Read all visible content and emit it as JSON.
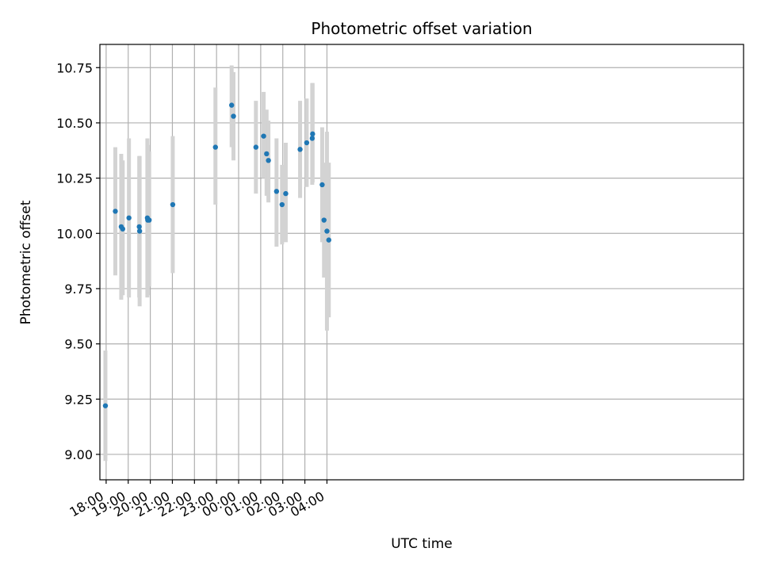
{
  "chart_data": {
    "type": "scatter",
    "title": "Photometric offset variation",
    "xlabel": "UTC time",
    "ylabel": "Photometric offset",
    "x_unit": "UTC time (HH:MM)",
    "xlim": [
      "17:43",
      "22:52 (+1 day)"
    ],
    "ylim": [
      8.885,
      10.855
    ],
    "x_ticks": [
      {
        "value": "18:00",
        "label": "18:00"
      },
      {
        "value": "19:00",
        "label": "19:00"
      },
      {
        "value": "20:00",
        "label": "20:00"
      },
      {
        "value": "21:00",
        "label": "21:00"
      },
      {
        "value": "22:00",
        "label": "22:00"
      },
      {
        "value": "23:00",
        "label": "23:00"
      },
      {
        "value": "00:00",
        "label": "00:00"
      },
      {
        "value": "01:00",
        "label": "01:00"
      },
      {
        "value": "02:00",
        "label": "02:00"
      },
      {
        "value": "03:00",
        "label": "03:00"
      },
      {
        "value": "04:00",
        "label": "04:00"
      }
    ],
    "y_ticks": [
      9.0,
      9.25,
      9.5,
      9.75,
      10.0,
      10.25,
      10.5,
      10.75
    ],
    "y_tick_labels": [
      "9.00",
      "9.25",
      "9.50",
      "9.75",
      "10.00",
      "10.25",
      "10.50",
      "10.75"
    ],
    "grid": true,
    "marker_color": "#1f77b4",
    "errorbar_color": "#d3d3d3",
    "points": [
      {
        "t": "17:58",
        "y": 9.22,
        "err_low": 8.97,
        "err_high": 9.47
      },
      {
        "t": "18:25",
        "y": 10.1,
        "err_low": 9.81,
        "err_high": 10.39
      },
      {
        "t": "18:41",
        "y": 10.03,
        "err_low": 9.7,
        "err_high": 10.36
      },
      {
        "t": "18:45",
        "y": 10.02,
        "err_low": 9.72,
        "err_high": 10.33
      },
      {
        "t": "19:02",
        "y": 10.07,
        "err_low": 9.71,
        "err_high": 10.43
      },
      {
        "t": "19:30",
        "y": 10.03,
        "err_low": 9.71,
        "err_high": 10.35
      },
      {
        "t": "19:31",
        "y": 10.01,
        "err_low": 9.67,
        "err_high": 10.35
      },
      {
        "t": "19:52",
        "y": 10.07,
        "err_low": 9.71,
        "err_high": 10.43
      },
      {
        "t": "19:53",
        "y": 10.06,
        "err_low": 9.72,
        "err_high": 10.4
      },
      {
        "t": "19:57",
        "y": 10.06,
        "err_low": 9.76,
        "err_high": 10.37
      },
      {
        "t": "21:01",
        "y": 10.13,
        "err_low": 9.82,
        "err_high": 10.44
      },
      {
        "t": "22:57",
        "y": 10.39,
        "err_low": 10.13,
        "err_high": 10.66
      },
      {
        "t": "23:41",
        "y": 10.58,
        "err_low": 10.39,
        "err_high": 10.76
      },
      {
        "t": "23:46",
        "y": 10.53,
        "err_low": 10.33,
        "err_high": 10.73
      },
      {
        "t": "00:47",
        "y": 10.39,
        "err_low": 10.18,
        "err_high": 10.6
      },
      {
        "t": "01:08",
        "y": 10.44,
        "err_low": 10.25,
        "err_high": 10.64
      },
      {
        "t": "01:16",
        "y": 10.36,
        "err_low": 10.17,
        "err_high": 10.56
      },
      {
        "t": "01:21",
        "y": 10.33,
        "err_low": 10.14,
        "err_high": 10.51
      },
      {
        "t": "01:43",
        "y": 10.19,
        "err_low": 9.94,
        "err_high": 10.43
      },
      {
        "t": "01:58",
        "y": 10.13,
        "err_low": 9.95,
        "err_high": 10.31
      },
      {
        "t": "02:08",
        "y": 10.18,
        "err_low": 9.96,
        "err_high": 10.41
      },
      {
        "t": "02:47",
        "y": 10.38,
        "err_low": 10.16,
        "err_high": 10.6
      },
      {
        "t": "03:05",
        "y": 10.41,
        "err_low": 10.21,
        "err_high": 10.61
      },
      {
        "t": "03:20",
        "y": 10.43,
        "err_low": 10.22,
        "err_high": 10.68
      },
      {
        "t": "03:21",
        "y": 10.45,
        "err_low": 10.23,
        "err_high": 10.68
      },
      {
        "t": "03:47",
        "y": 10.22,
        "err_low": 9.96,
        "err_high": 10.48
      },
      {
        "t": "03:52",
        "y": 10.06,
        "err_low": 9.8,
        "err_high": 10.32
      },
      {
        "t": "04:00",
        "y": 10.01,
        "err_low": 9.56,
        "err_high": 10.46
      },
      {
        "t": "04:05",
        "y": 9.97,
        "err_low": 9.62,
        "err_high": 10.32
      }
    ]
  }
}
